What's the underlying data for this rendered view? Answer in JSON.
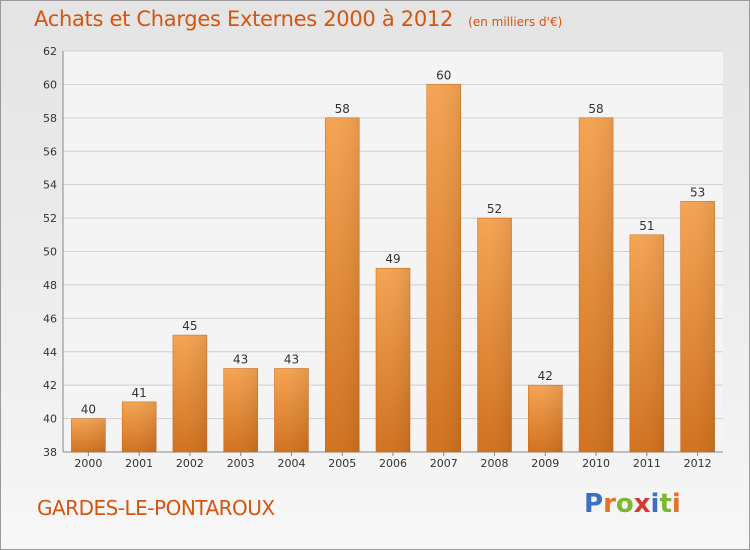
{
  "chart_data": {
    "type": "bar",
    "title": "Achats et Charges Externes 2000 à 2012",
    "unit_label": "(en milliers d'€)",
    "categories": [
      "2000",
      "2001",
      "2002",
      "2003",
      "2004",
      "2005",
      "2006",
      "2007",
      "2008",
      "2009",
      "2010",
      "2011",
      "2012"
    ],
    "values": [
      40,
      41,
      45,
      43,
      43,
      58,
      49,
      60,
      52,
      42,
      58,
      51,
      53
    ],
    "ylim": [
      38,
      62
    ],
    "yticks": [
      38,
      40,
      42,
      44,
      46,
      48,
      50,
      52,
      54,
      56,
      58,
      60,
      62
    ],
    "grid": true,
    "bar_color": "#e8832f"
  },
  "footer": {
    "town": "GARDES-LE-PONTAROUX",
    "logo_letters": [
      "P",
      "r",
      "o",
      "x",
      "i",
      "t",
      "i"
    ],
    "logo_colors": [
      "#3a6fc4",
      "#e8712a",
      "#7cb82f",
      "#d43a2f",
      "#3a6fc4",
      "#7cb82f",
      "#e8712a"
    ]
  }
}
